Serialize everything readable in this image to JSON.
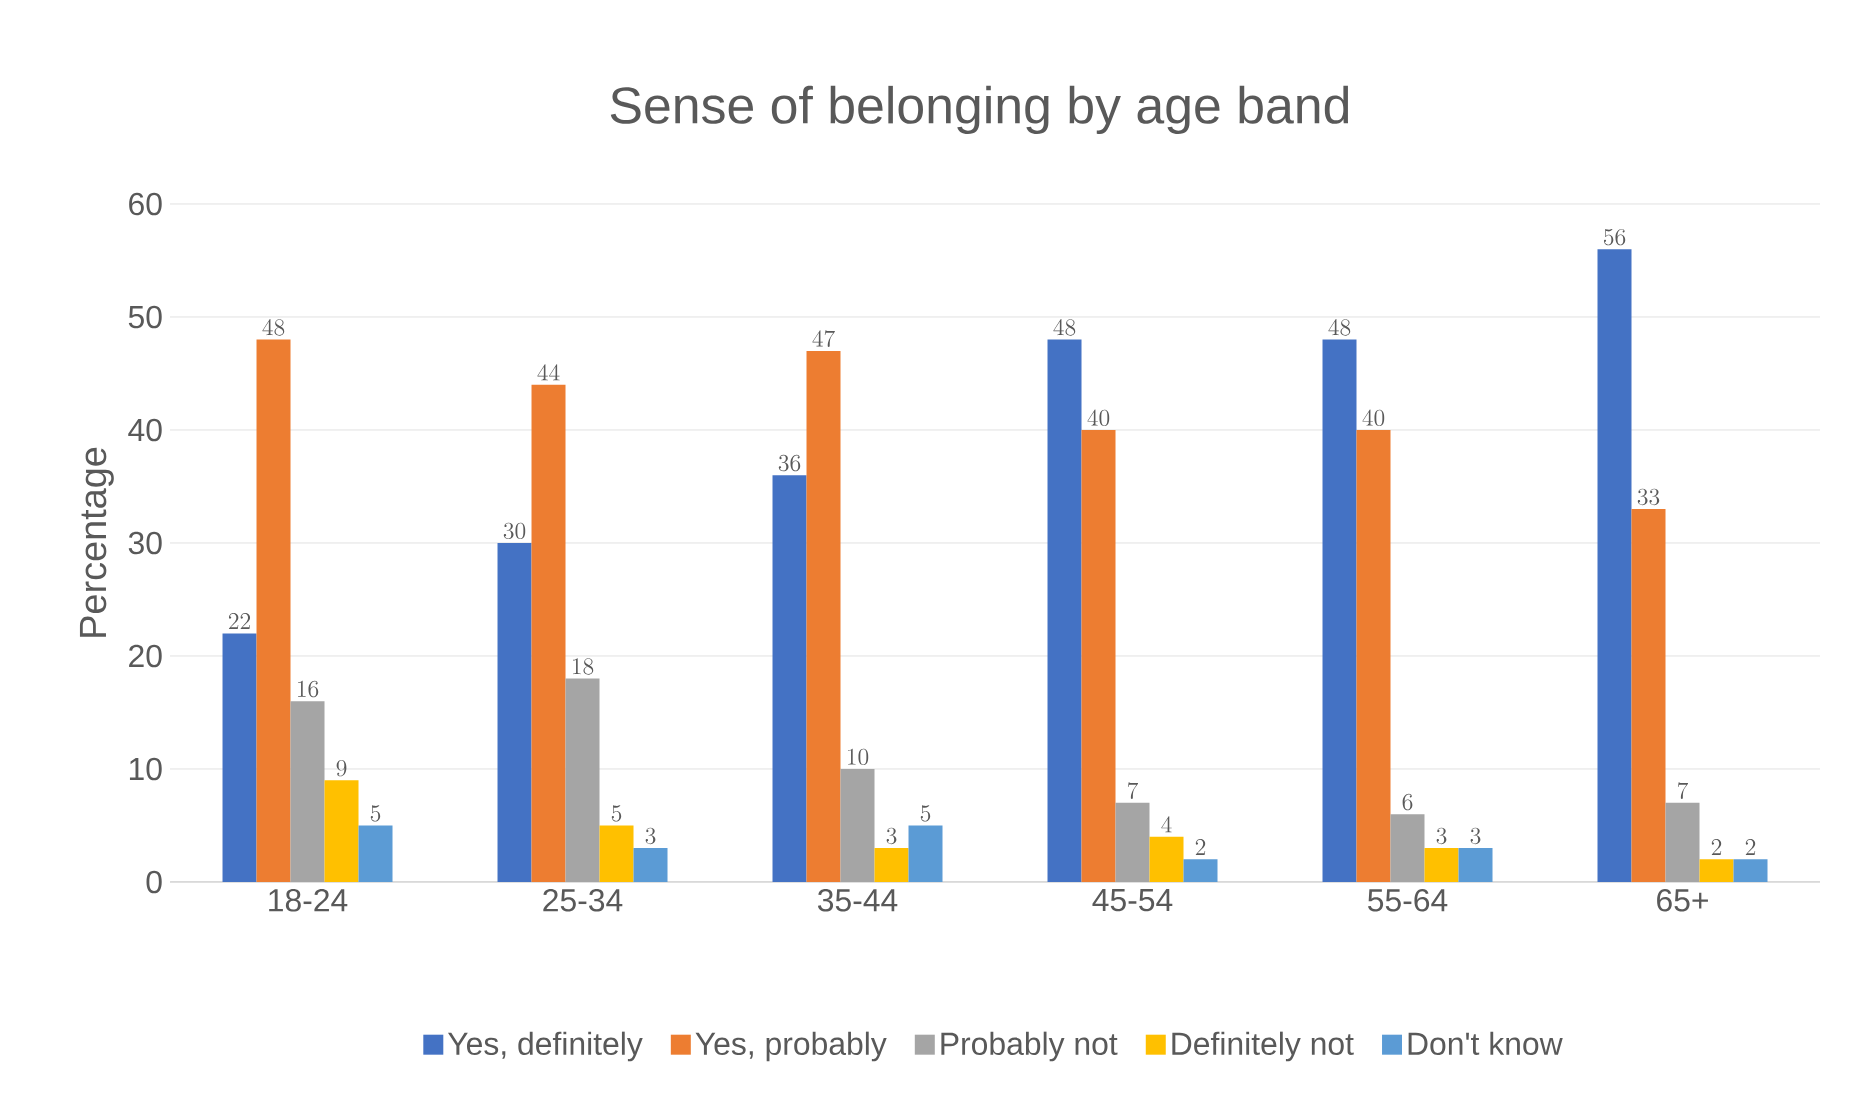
{
  "chart_data": {
    "type": "bar",
    "title": "Sense of belonging by age band",
    "ylabel": "Percentage",
    "categories": [
      "18-24",
      "25-34",
      "35-44",
      "45-54",
      "55-64",
      "65+"
    ],
    "series": [
      {
        "name": "Yes, definitely",
        "color": "#4472c4",
        "values": [
          22,
          30,
          36,
          48,
          48,
          56
        ]
      },
      {
        "name": "Yes, probably",
        "color": "#ed7d31",
        "values": [
          48,
          44,
          47,
          40,
          40,
          33
        ]
      },
      {
        "name": "Probably not",
        "color": "#a5a5a5",
        "values": [
          16,
          18,
          10,
          7,
          6,
          7
        ]
      },
      {
        "name": "Definitely not",
        "color": "#ffc000",
        "values": [
          9,
          5,
          3,
          4,
          3,
          2
        ]
      },
      {
        "name": "Don't know",
        "color": "#5b9bd5",
        "values": [
          5,
          3,
          5,
          2,
          3,
          2
        ]
      }
    ],
    "ylim": [
      0,
      60
    ],
    "yticks": [
      0,
      10,
      20,
      30,
      40,
      50,
      60
    ],
    "grid": "y",
    "legend": "bottom",
    "data_labels": true
  }
}
